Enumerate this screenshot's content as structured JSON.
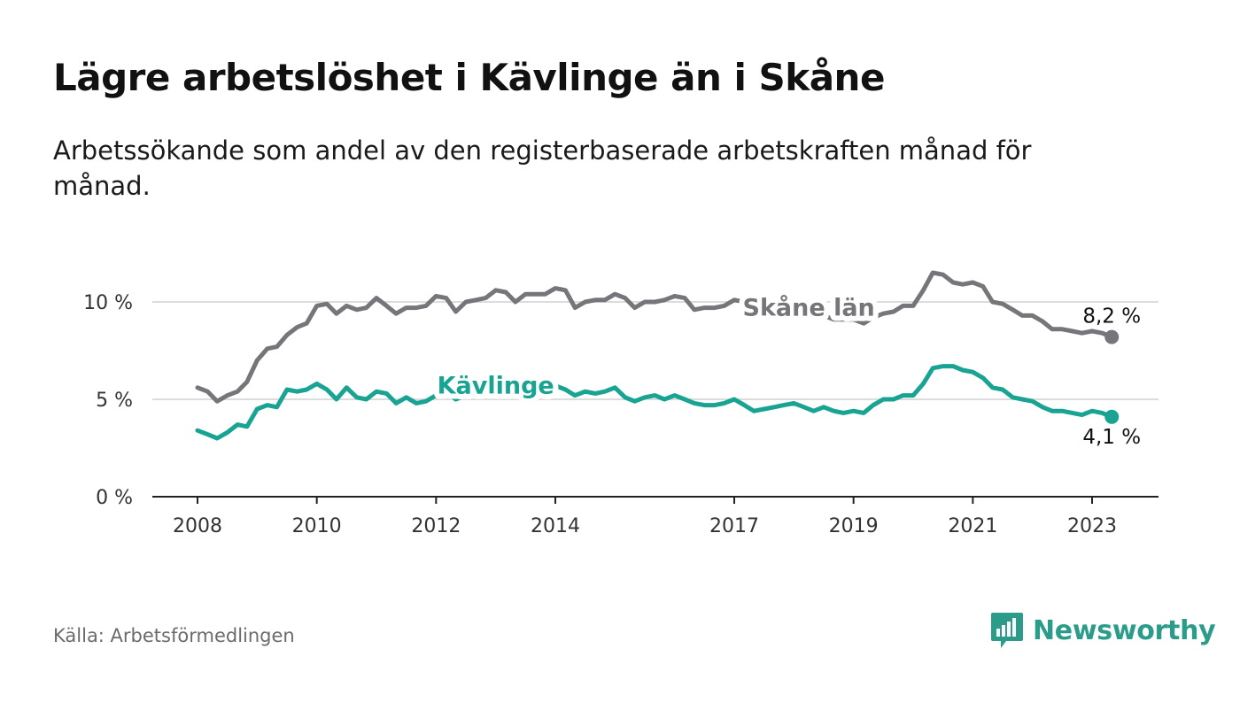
{
  "title": "Lägre arbetslöshet i Kävlinge än i Skåne",
  "subtitle": "Arbetssökande som andel av den registerbaserade arbetskraften månad för månad.",
  "source": "Källa: Arbetsförmedlingen",
  "brand": {
    "name": "Newsworthy",
    "icon": "newsworthy-logo-icon",
    "color": "#2c9c8a"
  },
  "chart_data": {
    "type": "line",
    "title": "Lägre arbetslöshet i Kävlinge än i Skåne",
    "xlabel": "",
    "ylabel": "",
    "xlim": [
      2007.75,
      2024.25
    ],
    "ylim": [
      0,
      12
    ],
    "yticks": [
      {
        "value": 0,
        "label": "0 %"
      },
      {
        "value": 5,
        "label": "5 %"
      },
      {
        "value": 10,
        "label": "10 %"
      }
    ],
    "xticks": [
      {
        "value": 2008,
        "label": "2008"
      },
      {
        "value": 2010,
        "label": "2010"
      },
      {
        "value": 2012,
        "label": "2012"
      },
      {
        "value": 2014,
        "label": "2014"
      },
      {
        "value": 2017,
        "label": "2017"
      },
      {
        "value": 2019,
        "label": "2019"
      },
      {
        "value": 2021,
        "label": "2021"
      },
      {
        "value": 2023,
        "label": "2023"
      }
    ],
    "grid": true,
    "series": [
      {
        "name": "Skåne län",
        "color": "#76767a",
        "label_at": 2018.25,
        "end_label": "8,2 %",
        "end_label_position": "above",
        "points": [
          [
            2008.0,
            5.6
          ],
          [
            2008.17,
            5.4
          ],
          [
            2008.33,
            4.9
          ],
          [
            2008.5,
            5.2
          ],
          [
            2008.67,
            5.4
          ],
          [
            2008.83,
            5.9
          ],
          [
            2009.0,
            7.0
          ],
          [
            2009.17,
            7.6
          ],
          [
            2009.33,
            7.7
          ],
          [
            2009.5,
            8.3
          ],
          [
            2009.67,
            8.7
          ],
          [
            2009.83,
            8.9
          ],
          [
            2010.0,
            9.8
          ],
          [
            2010.17,
            9.9
          ],
          [
            2010.33,
            9.4
          ],
          [
            2010.5,
            9.8
          ],
          [
            2010.67,
            9.6
          ],
          [
            2010.83,
            9.7
          ],
          [
            2011.0,
            10.2
          ],
          [
            2011.17,
            9.8
          ],
          [
            2011.33,
            9.4
          ],
          [
            2011.5,
            9.7
          ],
          [
            2011.67,
            9.7
          ],
          [
            2011.83,
            9.8
          ],
          [
            2012.0,
            10.3
          ],
          [
            2012.17,
            10.2
          ],
          [
            2012.33,
            9.5
          ],
          [
            2012.5,
            10.0
          ],
          [
            2012.67,
            10.1
          ],
          [
            2012.83,
            10.2
          ],
          [
            2013.0,
            10.6
          ],
          [
            2013.17,
            10.5
          ],
          [
            2013.33,
            10.0
          ],
          [
            2013.5,
            10.4
          ],
          [
            2013.67,
            10.4
          ],
          [
            2013.83,
            10.4
          ],
          [
            2014.0,
            10.7
          ],
          [
            2014.17,
            10.6
          ],
          [
            2014.33,
            9.7
          ],
          [
            2014.5,
            10.0
          ],
          [
            2014.67,
            10.1
          ],
          [
            2014.83,
            10.1
          ],
          [
            2015.0,
            10.4
          ],
          [
            2015.17,
            10.2
          ],
          [
            2015.33,
            9.7
          ],
          [
            2015.5,
            10.0
          ],
          [
            2015.67,
            10.0
          ],
          [
            2015.83,
            10.1
          ],
          [
            2016.0,
            10.3
          ],
          [
            2016.17,
            10.2
          ],
          [
            2016.33,
            9.6
          ],
          [
            2016.5,
            9.7
          ],
          [
            2016.67,
            9.7
          ],
          [
            2016.83,
            9.8
          ],
          [
            2017.0,
            10.1
          ],
          [
            2017.17,
            10.0
          ],
          [
            2017.33,
            9.4
          ],
          [
            2017.5,
            9.5
          ],
          [
            2017.67,
            9.5
          ],
          [
            2017.83,
            9.6
          ],
          [
            2018.0,
            9.8
          ],
          [
            2018.17,
            9.7
          ],
          [
            2018.33,
            9.3
          ],
          [
            2018.5,
            9.3
          ],
          [
            2018.67,
            9.1
          ],
          [
            2018.83,
            9.1
          ],
          [
            2019.0,
            9.1
          ],
          [
            2019.17,
            8.9
          ],
          [
            2019.33,
            9.2
          ],
          [
            2019.5,
            9.4
          ],
          [
            2019.67,
            9.5
          ],
          [
            2019.83,
            9.8
          ],
          [
            2020.0,
            9.8
          ],
          [
            2020.17,
            10.6
          ],
          [
            2020.33,
            11.5
          ],
          [
            2020.5,
            11.4
          ],
          [
            2020.67,
            11.0
          ],
          [
            2020.83,
            10.9
          ],
          [
            2021.0,
            11.0
          ],
          [
            2021.17,
            10.8
          ],
          [
            2021.33,
            10.0
          ],
          [
            2021.5,
            9.9
          ],
          [
            2021.67,
            9.6
          ],
          [
            2021.83,
            9.3
          ],
          [
            2022.0,
            9.3
          ],
          [
            2022.17,
            9.0
          ],
          [
            2022.33,
            8.6
          ],
          [
            2022.5,
            8.6
          ],
          [
            2022.67,
            8.5
          ],
          [
            2022.83,
            8.4
          ],
          [
            2023.0,
            8.5
          ],
          [
            2023.17,
            8.4
          ],
          [
            2023.33,
            8.2
          ]
        ]
      },
      {
        "name": "Kävlinge",
        "color": "#18a393",
        "label_at": 2013.0,
        "end_label": "4,1 %",
        "end_label_position": "below",
        "points": [
          [
            2008.0,
            3.4
          ],
          [
            2008.17,
            3.2
          ],
          [
            2008.33,
            3.0
          ],
          [
            2008.5,
            3.3
          ],
          [
            2008.67,
            3.7
          ],
          [
            2008.83,
            3.6
          ],
          [
            2009.0,
            4.5
          ],
          [
            2009.17,
            4.7
          ],
          [
            2009.33,
            4.6
          ],
          [
            2009.5,
            5.5
          ],
          [
            2009.67,
            5.4
          ],
          [
            2009.83,
            5.5
          ],
          [
            2010.0,
            5.8
          ],
          [
            2010.17,
            5.5
          ],
          [
            2010.33,
            5.0
          ],
          [
            2010.5,
            5.6
          ],
          [
            2010.67,
            5.1
          ],
          [
            2010.83,
            5.0
          ],
          [
            2011.0,
            5.4
          ],
          [
            2011.17,
            5.3
          ],
          [
            2011.33,
            4.8
          ],
          [
            2011.5,
            5.1
          ],
          [
            2011.67,
            4.8
          ],
          [
            2011.83,
            4.9
          ],
          [
            2012.0,
            5.2
          ],
          [
            2012.17,
            5.4
          ],
          [
            2012.33,
            5.0
          ],
          [
            2012.5,
            5.2
          ],
          [
            2012.67,
            5.3
          ],
          [
            2012.83,
            5.5
          ],
          [
            2013.0,
            5.7
          ],
          [
            2013.17,
            5.6
          ],
          [
            2013.33,
            5.4
          ],
          [
            2013.5,
            5.5
          ],
          [
            2013.67,
            5.5
          ],
          [
            2013.83,
            5.6
          ],
          [
            2014.0,
            5.7
          ],
          [
            2014.17,
            5.5
          ],
          [
            2014.33,
            5.2
          ],
          [
            2014.5,
            5.4
          ],
          [
            2014.67,
            5.3
          ],
          [
            2014.83,
            5.4
          ],
          [
            2015.0,
            5.6
          ],
          [
            2015.17,
            5.1
          ],
          [
            2015.33,
            4.9
          ],
          [
            2015.5,
            5.1
          ],
          [
            2015.67,
            5.2
          ],
          [
            2015.83,
            5.0
          ],
          [
            2016.0,
            5.2
          ],
          [
            2016.17,
            5.0
          ],
          [
            2016.33,
            4.8
          ],
          [
            2016.5,
            4.7
          ],
          [
            2016.67,
            4.7
          ],
          [
            2016.83,
            4.8
          ],
          [
            2017.0,
            5.0
          ],
          [
            2017.17,
            4.7
          ],
          [
            2017.33,
            4.4
          ],
          [
            2017.5,
            4.5
          ],
          [
            2017.67,
            4.6
          ],
          [
            2017.83,
            4.7
          ],
          [
            2018.0,
            4.8
          ],
          [
            2018.17,
            4.6
          ],
          [
            2018.33,
            4.4
          ],
          [
            2018.5,
            4.6
          ],
          [
            2018.67,
            4.4
          ],
          [
            2018.83,
            4.3
          ],
          [
            2019.0,
            4.4
          ],
          [
            2019.17,
            4.3
          ],
          [
            2019.33,
            4.7
          ],
          [
            2019.5,
            5.0
          ],
          [
            2019.67,
            5.0
          ],
          [
            2019.83,
            5.2
          ],
          [
            2020.0,
            5.2
          ],
          [
            2020.17,
            5.8
          ],
          [
            2020.33,
            6.6
          ],
          [
            2020.5,
            6.7
          ],
          [
            2020.67,
            6.7
          ],
          [
            2020.83,
            6.5
          ],
          [
            2021.0,
            6.4
          ],
          [
            2021.17,
            6.1
          ],
          [
            2021.33,
            5.6
          ],
          [
            2021.5,
            5.5
          ],
          [
            2021.67,
            5.1
          ],
          [
            2021.83,
            5.0
          ],
          [
            2022.0,
            4.9
          ],
          [
            2022.17,
            4.6
          ],
          [
            2022.33,
            4.4
          ],
          [
            2022.5,
            4.4
          ],
          [
            2022.67,
            4.3
          ],
          [
            2022.83,
            4.2
          ],
          [
            2023.0,
            4.4
          ],
          [
            2023.17,
            4.3
          ],
          [
            2023.33,
            4.1
          ]
        ]
      }
    ]
  }
}
